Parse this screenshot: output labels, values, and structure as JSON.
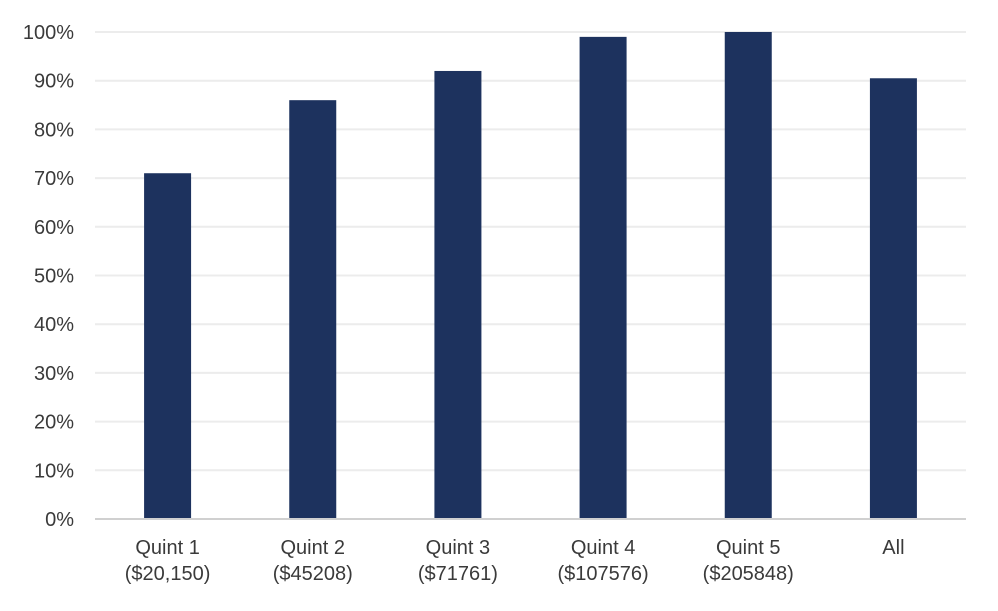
{
  "chart_data": {
    "type": "bar",
    "title": "",
    "xlabel": "",
    "ylabel": "",
    "categories": [
      [
        "Quint 1",
        "($20,150)"
      ],
      [
        "Quint 2",
        "($45208)"
      ],
      [
        "Quint 3",
        "($71761)"
      ],
      [
        "Quint 4",
        "($107576)"
      ],
      [
        "Quint 5",
        "($205848)"
      ],
      [
        "All"
      ]
    ],
    "values": [
      71,
      86,
      92,
      99,
      100,
      90.5
    ],
    "ylim": [
      0,
      100
    ],
    "yticks": [
      0,
      10,
      20,
      30,
      40,
      50,
      60,
      70,
      80,
      90,
      100
    ],
    "ytick_labels": [
      "0%",
      "10%",
      "20%",
      "30%",
      "40%",
      "50%",
      "60%",
      "70%",
      "80%",
      "90%",
      "100%"
    ],
    "grid": true,
    "legend": "none",
    "colors": {
      "bar": "#1d325e",
      "grid": "#ececec",
      "axis": "#d0d0d0"
    }
  }
}
